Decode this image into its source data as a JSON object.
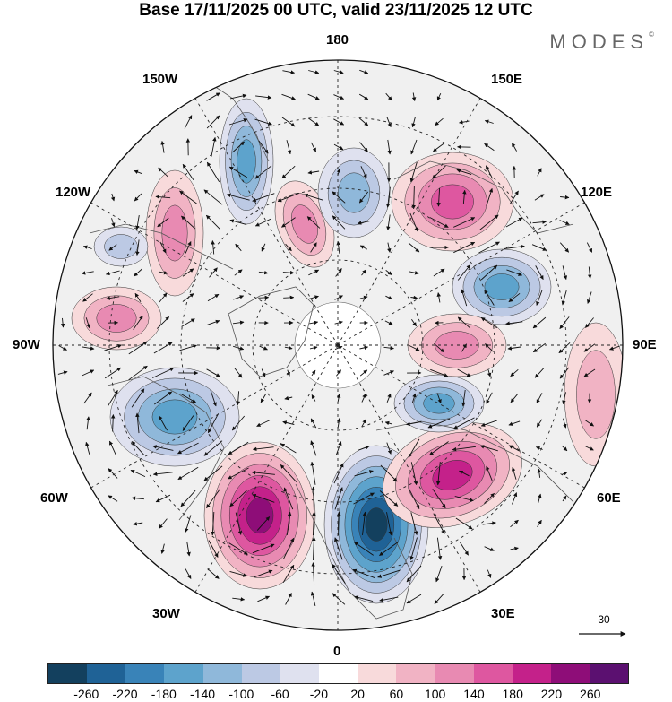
{
  "title": "Base 17/11/2025 00 UTC, valid 23/11/2025 12 UTC",
  "brand": {
    "name": "MODES",
    "mark": "©"
  },
  "longitude_labels": {
    "top": "180",
    "bottom": "0",
    "left": "90W",
    "right": "90E",
    "upper_left_1": "150W",
    "upper_left_2": "120W",
    "upper_right_1": "150E",
    "upper_right_2": "120E",
    "lower_left_1": "60W",
    "lower_left_2": "30W",
    "lower_right_1": "60E",
    "lower_right_2": "30E"
  },
  "reference_vector": {
    "label": "30"
  },
  "colorbar": {
    "colors": [
      "#13405e",
      "#1f6296",
      "#3983b8",
      "#5da3cc",
      "#8fb8da",
      "#bcc9e4",
      "#dfe1ef",
      "#ffffff",
      "#f8dadb",
      "#f1b3c4",
      "#e88ab2",
      "#de57a0",
      "#c4218a",
      "#8e0d78",
      "#5b1070"
    ],
    "tick_labels": [
      "-260",
      "-220",
      "-180",
      "-140",
      "-100",
      "-60",
      "-20",
      "20",
      "60",
      "100",
      "140",
      "180",
      "220",
      "260"
    ]
  },
  "anomaly_centers": [
    {
      "name": "north-atlantic-low",
      "sign": "negative",
      "value": -260
    },
    {
      "name": "greenland-high",
      "sign": "positive",
      "value": 240
    },
    {
      "name": "west-siberia-high",
      "sign": "positive",
      "value": 200
    },
    {
      "name": "east-siberia-high",
      "sign": "positive",
      "value": 160
    },
    {
      "name": "hudson-bay-low",
      "sign": "negative",
      "value": -160
    },
    {
      "name": "ural-low",
      "sign": "negative",
      "value": -140
    },
    {
      "name": "okhotsk-low",
      "sign": "negative",
      "value": -140
    },
    {
      "name": "gulf-of-alaska-low",
      "sign": "negative",
      "value": -160
    },
    {
      "name": "alaska-high",
      "sign": "positive",
      "value": 120
    },
    {
      "name": "bering-high",
      "sign": "positive",
      "value": 120
    },
    {
      "name": "canada-high",
      "sign": "positive",
      "value": 100
    },
    {
      "name": "kara-high",
      "sign": "positive",
      "value": 100
    },
    {
      "name": "central-asia-high",
      "sign": "positive",
      "value": 60
    },
    {
      "name": "pacific-low",
      "sign": "negative",
      "value": -100
    },
    {
      "name": "beaufort-low",
      "sign": "negative",
      "value": -60
    }
  ]
}
